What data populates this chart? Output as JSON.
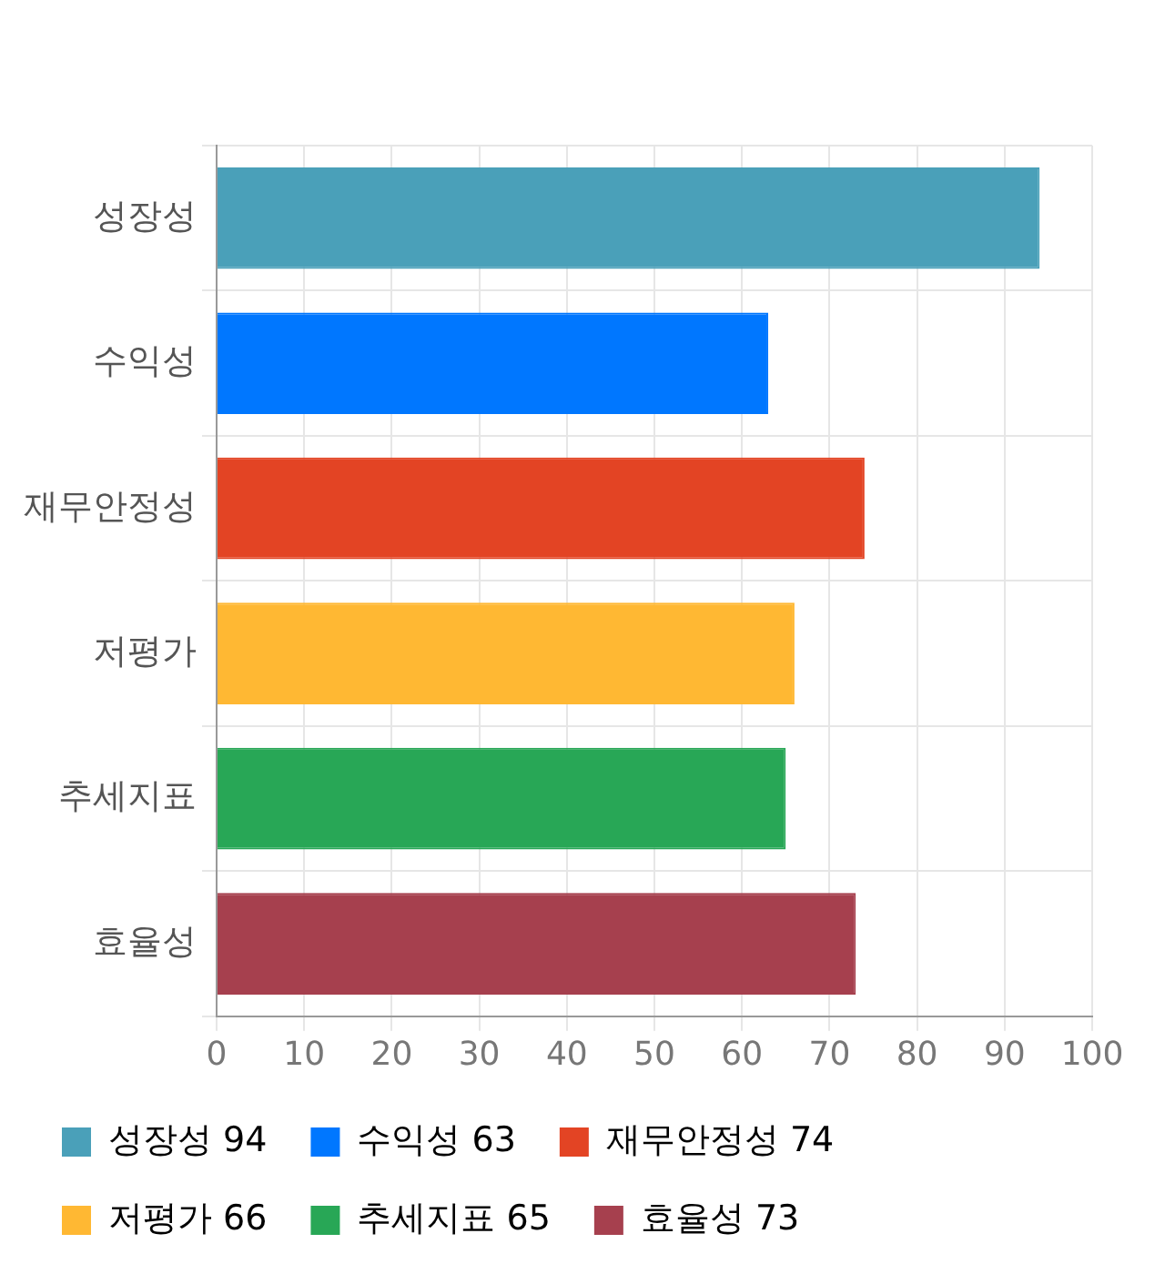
{
  "chart_data": {
    "type": "bar",
    "orientation": "horizontal",
    "stacked": true,
    "categories": [
      "성장성",
      "수익성",
      "재무안정성",
      "저평가",
      "추세지표",
      "효율성"
    ],
    "series": [
      {
        "name": "성장성 94",
        "color": "#4aa0b9",
        "values": [
          94,
          null,
          null,
          null,
          null,
          null
        ]
      },
      {
        "name": "수익성 63",
        "color": "#0077ff",
        "values": [
          null,
          63,
          null,
          null,
          null,
          null
        ]
      },
      {
        "name": "재무안정성 74",
        "color": "#e34424",
        "values": [
          null,
          null,
          74,
          null,
          null,
          null
        ]
      },
      {
        "name": "저평가 66",
        "color": "#ffb833",
        "values": [
          null,
          null,
          null,
          66,
          null,
          null
        ]
      },
      {
        "name": "추세지표 65",
        "color": "#28a756",
        "values": [
          null,
          null,
          null,
          null,
          65,
          null
        ]
      },
      {
        "name": "효율성 73",
        "color": "#a6404e",
        "values": [
          null,
          null,
          null,
          null,
          null,
          73
        ]
      }
    ],
    "xlim": [
      0,
      100
    ],
    "xticks": [
      0,
      10,
      20,
      30,
      40,
      50,
      60,
      70,
      80,
      90,
      100
    ],
    "grid": true,
    "legend": "bottom"
  }
}
